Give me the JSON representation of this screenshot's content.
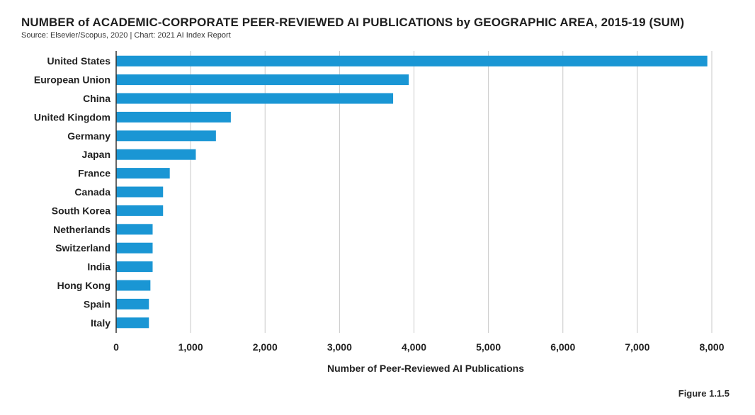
{
  "header": {
    "title": "NUMBER of ACADEMIC-CORPORATE PEER-REVIEWED AI PUBLICATIONS by GEOGRAPHIC AREA, 2015-19 (SUM)",
    "source": "Source: Elsevier/Scopus, 2020 | Chart: 2021 AI Index Report"
  },
  "footer": {
    "figure_label": "Figure 1.1.5"
  },
  "colors": {
    "bar": "#1a96d4",
    "grid": "#c8c8c8",
    "axis": "#333333"
  },
  "chart_data": {
    "type": "bar",
    "orientation": "horizontal",
    "categories": [
      "United States",
      "European Union",
      "China",
      "United Kingdom",
      "Germany",
      "Japan",
      "France",
      "Canada",
      "South Korea",
      "Netherlands",
      "Switzerland",
      "India",
      "Hong Kong",
      "Spain",
      "Italy"
    ],
    "values": [
      7940,
      3930,
      3720,
      1540,
      1340,
      1070,
      720,
      630,
      630,
      490,
      490,
      490,
      460,
      440,
      440
    ],
    "xlabel": "Number of Peer-Reviewed AI Publications",
    "ylabel": "",
    "xlim": [
      0,
      8000
    ],
    "xticks": [
      0,
      1000,
      2000,
      3000,
      4000,
      5000,
      6000,
      7000,
      8000
    ],
    "xtick_labels": [
      "0",
      "1,000",
      "2,000",
      "3,000",
      "4,000",
      "5,000",
      "6,000",
      "7,000",
      "8,000"
    ],
    "grid": "vertical"
  }
}
